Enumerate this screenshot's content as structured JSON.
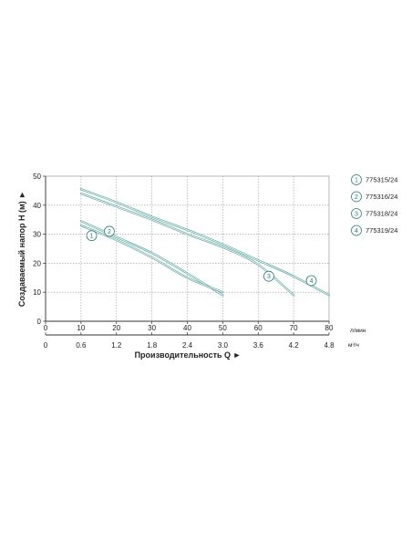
{
  "chart_data": {
    "type": "line",
    "xlabel": "Производительность Q",
    "ylabel": "Создаваемый напор H (м)",
    "x_unit": "л/мин",
    "x2_unit": "м³/ч",
    "xlim": [
      0,
      80
    ],
    "ylim": [
      0,
      50
    ],
    "x_ticks": [
      "0",
      "10",
      "20",
      "30",
      "40",
      "50",
      "60",
      "70",
      "80"
    ],
    "x2_ticks": [
      "0",
      "0.6",
      "1.2",
      "1.8",
      "2.4",
      "3.0",
      "3.6",
      "4.2",
      "4.8"
    ],
    "y_ticks": [
      "0",
      "10",
      "20",
      "30",
      "40",
      "50"
    ],
    "grid": true,
    "legend_position": "right",
    "series": [
      {
        "name": "775315/24",
        "marker": "1",
        "points": [
          [
            10,
            34.5
          ],
          [
            20,
            29
          ],
          [
            30,
            23.5
          ],
          [
            40,
            16.5
          ],
          [
            50,
            9
          ]
        ]
      },
      {
        "name": "775316/24",
        "marker": "2",
        "points": [
          [
            10,
            33
          ],
          [
            20,
            28
          ],
          [
            30,
            22
          ],
          [
            40,
            15
          ],
          [
            50,
            10
          ]
        ]
      },
      {
        "name": "775318/24",
        "marker": "3",
        "points": [
          [
            10,
            44
          ],
          [
            20,
            39.5
          ],
          [
            30,
            35
          ],
          [
            40,
            30
          ],
          [
            50,
            25.5
          ],
          [
            60,
            19.5
          ],
          [
            70,
            9
          ]
        ]
      },
      {
        "name": "775319/24",
        "marker": "4",
        "points": [
          [
            10,
            45.5
          ],
          [
            20,
            41
          ],
          [
            30,
            36
          ],
          [
            40,
            31.5
          ],
          [
            50,
            26.5
          ],
          [
            60,
            21
          ],
          [
            70,
            15.5
          ],
          [
            80,
            9
          ]
        ]
      }
    ],
    "markers": [
      {
        "label": "1",
        "x": 13,
        "y": 29.5
      },
      {
        "label": "2",
        "x": 18,
        "y": 31
      },
      {
        "label": "3",
        "x": 63,
        "y": 15.5
      },
      {
        "label": "4",
        "x": 75,
        "y": 14
      }
    ]
  },
  "colors": {
    "curve": "#5fa9a3",
    "marker": "#2e7d78",
    "text": "#222222"
  }
}
